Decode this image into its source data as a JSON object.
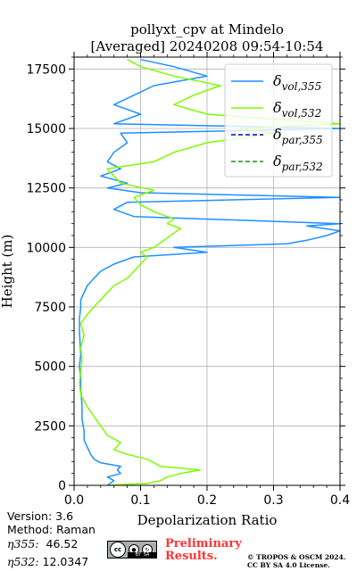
{
  "chart_data": {
    "type": "line",
    "title_line1": "pollyxt_cpv at Mindelo",
    "title_line2": "[Averaged] 20240208 09:54-10:54",
    "xlabel": "Depolarization Ratio",
    "ylabel": "Height (m)",
    "xlim": [
      0,
      0.4
    ],
    "ylim": [
      0,
      18000
    ],
    "x_ticks": [
      "0.0",
      "0.1",
      "0.2",
      "0.3",
      "0.4"
    ],
    "y_ticks": [
      "0",
      "2500",
      "5000",
      "7500",
      "10000",
      "12500",
      "15000",
      "17500"
    ],
    "x_tick_values": [
      0,
      0.1,
      0.2,
      0.3,
      0.4
    ],
    "y_tick_values": [
      0,
      2500,
      5000,
      7500,
      10000,
      12500,
      15000,
      17500
    ],
    "grid": true,
    "legend_placement": "top-right",
    "legend": [
      {
        "label": "δvol,355",
        "sym": "δ",
        "sub": "vol,355",
        "color": "#1e90ff",
        "dash": "solid"
      },
      {
        "label": "δvol,532",
        "sym": "δ",
        "sub": "vol,532",
        "color": "#7cfc00",
        "dash": "solid"
      },
      {
        "label": "δpar,355",
        "sym": "δ",
        "sub": "par,355",
        "color": "#0000cd",
        "dash": "dashed"
      },
      {
        "label": "δpar,532",
        "sym": "δ",
        "sub": "par,532",
        "color": "#228b22",
        "dash": "dashed"
      }
    ],
    "series": [
      {
        "name": "δvol,355",
        "color": "#1e90ff",
        "y": [
          0,
          200,
          350,
          500,
          650,
          800,
          950,
          1100,
          1300,
          1600,
          1900,
          2300,
          2800,
          3400,
          4000,
          4500,
          5000,
          5500,
          6000,
          6500,
          7000,
          7500,
          7800,
          8100,
          8400,
          8700,
          9000,
          9300,
          9600,
          9800,
          10000,
          10150,
          10300,
          10500,
          10700,
          10900,
          11000,
          11300,
          11600,
          11900,
          12100,
          12300,
          12500,
          12700,
          13000,
          13300,
          13600,
          14000,
          14400,
          14800,
          15000,
          15200,
          15600,
          16000,
          16400,
          16800,
          17200,
          17600,
          17900
        ],
        "x": [
          0.05,
          0.06,
          0.05,
          0.07,
          0.065,
          0.07,
          0.04,
          0.03,
          0.025,
          0.02,
          0.015,
          0.015,
          0.012,
          0.012,
          0.01,
          0.01,
          0.008,
          0.01,
          0.009,
          0.008,
          0.008,
          0.01,
          0.01,
          0.015,
          0.02,
          0.03,
          0.04,
          0.06,
          0.09,
          0.2,
          0.15,
          0.32,
          0.35,
          0.38,
          0.4,
          0.35,
          0.4,
          0.09,
          0.06,
          0.08,
          0.4,
          0.1,
          0.05,
          0.08,
          0.04,
          0.07,
          0.05,
          0.06,
          0.08,
          0.07,
          0.4,
          0.06,
          0.1,
          0.06,
          0.09,
          0.12,
          0.2,
          0.15,
          0.1
        ]
      },
      {
        "name": "δvol,532",
        "color": "#7cfc00",
        "y": [
          0,
          80,
          200,
          350,
          500,
          650,
          800,
          950,
          1100,
          1300,
          1500,
          1800,
          2100,
          2500,
          2900,
          3300,
          3800,
          4300,
          4800,
          5300,
          5800,
          6300,
          6800,
          7200,
          7500,
          7800,
          8100,
          8400,
          8700,
          9000,
          9300,
          9600,
          9800,
          10000,
          10200,
          10400,
          10600,
          10800,
          11000,
          11200,
          11500,
          11800,
          12100,
          12400,
          12700,
          13000,
          13300,
          13600,
          14000,
          14400,
          14800,
          15000,
          15200,
          15600,
          16000,
          16400,
          16800,
          17200,
          17600,
          17900
        ],
        "x": [
          0.05,
          0.11,
          0.13,
          0.14,
          0.16,
          0.19,
          0.13,
          0.12,
          0.11,
          0.08,
          0.06,
          0.07,
          0.05,
          0.04,
          0.03,
          0.02,
          0.01,
          0.008,
          0.01,
          0.012,
          0.01,
          0.015,
          0.01,
          0.02,
          0.03,
          0.04,
          0.05,
          0.06,
          0.08,
          0.09,
          0.1,
          0.11,
          0.1,
          0.12,
          0.13,
          0.14,
          0.15,
          0.16,
          0.14,
          0.15,
          0.12,
          0.1,
          0.09,
          0.12,
          0.07,
          0.06,
          0.05,
          0.12,
          0.15,
          0.2,
          0.3,
          0.25,
          0.4,
          0.2,
          0.15,
          0.18,
          0.22,
          0.15,
          0.1,
          0.08
        ]
      },
      {
        "name": "δpar,355",
        "color": "#0000cd",
        "y": [],
        "x": []
      },
      {
        "name": "δpar,532",
        "color": "#228b22",
        "y": [],
        "x": []
      }
    ]
  },
  "info": {
    "version": "Version: 3.6",
    "method": "Method: Raman",
    "eta355_label": "η355:",
    "eta355_value": "46.52",
    "eta532_label": "η532:",
    "eta532_value": "12.0347"
  },
  "footer": {
    "prelim_line1": "Preliminary",
    "prelim_line2": "Results.",
    "copyright_line1": "© TROPOS & OSCM 2024.",
    "copyright_line2": "CC BY SA 4.0 License.",
    "cc_badge": "cc"
  }
}
